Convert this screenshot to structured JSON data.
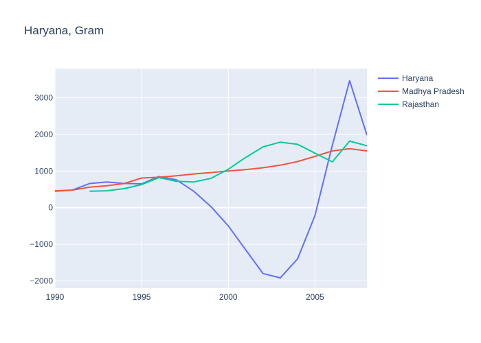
{
  "chart_data": {
    "type": "line",
    "title": "Haryana, Gram",
    "xlabel": "",
    "ylabel": "",
    "xlim": [
      1990,
      2008
    ],
    "ylim": [
      -2200,
      3800
    ],
    "x_ticks": [
      1990,
      1995,
      2000,
      2005
    ],
    "y_ticks": [
      -2000,
      -1000,
      0,
      1000,
      2000,
      3000
    ],
    "y_tick_labels": [
      "−2000",
      "−1000",
      "0",
      "1000",
      "2000",
      "3000"
    ],
    "grid": true,
    "legend_position": "top-right",
    "background": "#e5ecf6",
    "series": [
      {
        "name": "Haryana",
        "color": "#636efa",
        "x": [
          1990,
          1991,
          1992,
          1993,
          1994,
          1995,
          1996,
          1997,
          1998,
          1999,
          2000,
          2001,
          2002,
          2003,
          2004,
          2005,
          2006,
          2007,
          2008
        ],
        "values": [
          450,
          480,
          660,
          700,
          660,
          650,
          850,
          760,
          450,
          30,
          -500,
          -1150,
          -1800,
          -1920,
          -1400,
          -220,
          1700,
          3470,
          1980
        ]
      },
      {
        "name": "Madhya Pradesh",
        "color": "#ef553b",
        "x": [
          1990,
          1991,
          1992,
          1993,
          1994,
          1995,
          1996,
          1997,
          1998,
          1999,
          2000,
          2001,
          2002,
          2003,
          2004,
          2005,
          2006,
          2007,
          2008
        ],
        "values": [
          460,
          480,
          560,
          600,
          660,
          810,
          830,
          870,
          920,
          960,
          1000,
          1040,
          1090,
          1160,
          1260,
          1400,
          1550,
          1610,
          1550
        ]
      },
      {
        "name": "Rajasthan",
        "color": "#00cc96",
        "x": [
          1992,
          1993,
          1994,
          1995,
          1996,
          1997,
          1998,
          1999,
          2000,
          2001,
          2002,
          2003,
          2004,
          2005,
          2006,
          2007,
          2008
        ],
        "values": [
          450,
          460,
          520,
          630,
          820,
          720,
          700,
          800,
          1050,
          1370,
          1660,
          1790,
          1730,
          1490,
          1250,
          1820,
          1690
        ]
      }
    ]
  }
}
